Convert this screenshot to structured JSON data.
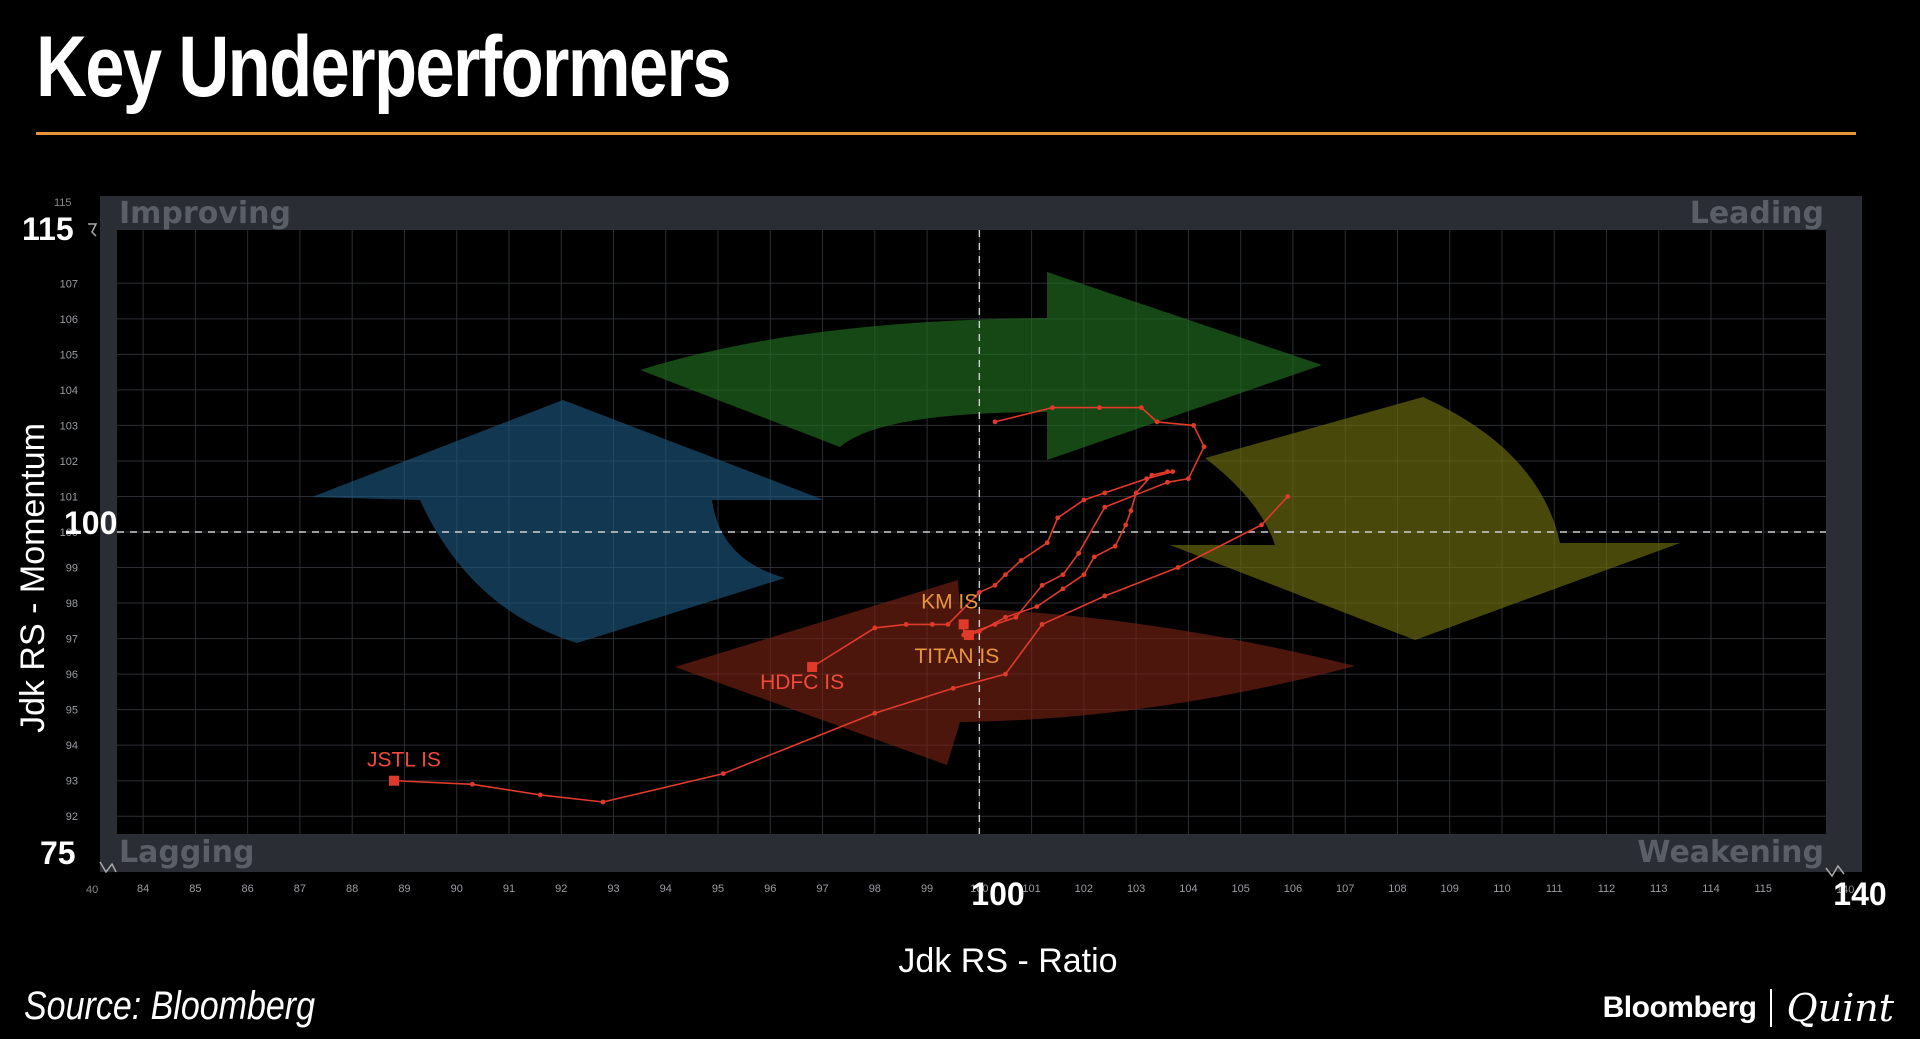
{
  "header": {
    "title": "Key Underperformers"
  },
  "footer": {
    "source": "Source: Bloomberg",
    "logo_left": "Bloomberg",
    "logo_right": "Quint"
  },
  "colors": {
    "accent_rule": "#e8963a",
    "trail": "#e03a2a",
    "improving": "#2d7fb5",
    "leading": "#2f9a2f",
    "weakening": "#9a9a1e",
    "lagging": "#b83a20"
  },
  "chart_data": {
    "type": "scatter",
    "title": "Key Underperformers",
    "xlabel": "Jdk RS - Ratio",
    "ylabel": "Jdk RS - Momentum",
    "xlim": [
      83.5,
      116.2
    ],
    "ylim": [
      91.5,
      108.5
    ],
    "grid": true,
    "center": {
      "x": 100,
      "y": 100,
      "x_label": "100",
      "y_label": "100"
    },
    "quadrants": {
      "top_left": "Improving",
      "top_right": "Leading",
      "bottom_left": "Lagging",
      "bottom_right": "Weakening"
    },
    "x_ticks": [
      "84",
      "85",
      "86",
      "87",
      "88",
      "89",
      "90",
      "91",
      "92",
      "93",
      "94",
      "95",
      "96",
      "97",
      "98",
      "99",
      "100",
      "101",
      "102",
      "103",
      "104",
      "105",
      "106",
      "107",
      "108",
      "109",
      "110",
      "111",
      "112",
      "113",
      "114",
      "115"
    ],
    "y_ticks": [
      "92",
      "93",
      "94",
      "95",
      "96",
      "97",
      "98",
      "99",
      "100",
      "101",
      "102",
      "103",
      "104",
      "105",
      "106",
      "107"
    ],
    "axis_breaks": {
      "y_top": "115",
      "y_bottom": "75",
      "x_left": "40",
      "x_right": "140",
      "x_right_large": "140"
    },
    "series": [
      {
        "name": "JSTL IS",
        "points": [
          [
            105.9,
            101.0
          ],
          [
            105.4,
            100.2
          ],
          [
            103.8,
            99.0
          ],
          [
            102.4,
            98.2
          ],
          [
            101.2,
            97.4
          ],
          [
            100.5,
            96.0
          ],
          [
            99.5,
            95.6
          ],
          [
            98.0,
            94.9
          ],
          [
            95.1,
            93.2
          ],
          [
            92.8,
            92.4
          ],
          [
            91.6,
            92.6
          ],
          [
            90.3,
            92.9
          ],
          [
            88.8,
            93.0
          ]
        ]
      },
      {
        "name": "HDFC IS",
        "points": [
          [
            103.7,
            101.7
          ],
          [
            103.2,
            101.5
          ],
          [
            102.4,
            101.1
          ],
          [
            102.0,
            100.9
          ],
          [
            101.5,
            100.4
          ],
          [
            101.3,
            99.7
          ],
          [
            100.8,
            99.2
          ],
          [
            100.5,
            98.8
          ],
          [
            100.3,
            98.5
          ],
          [
            100.0,
            98.3
          ],
          [
            99.4,
            97.4
          ],
          [
            99.1,
            97.4
          ],
          [
            98.6,
            97.4
          ],
          [
            98.0,
            97.3
          ],
          [
            96.8,
            96.2
          ]
        ]
      },
      {
        "name": "KM IS",
        "points": [
          [
            100.3,
            103.1
          ],
          [
            101.4,
            103.5
          ],
          [
            102.3,
            103.5
          ],
          [
            103.1,
            103.5
          ],
          [
            103.4,
            103.1
          ],
          [
            104.1,
            103.0
          ],
          [
            104.3,
            102.4
          ],
          [
            104.0,
            101.5
          ],
          [
            103.6,
            101.4
          ],
          [
            102.4,
            100.7
          ],
          [
            101.9,
            99.4
          ],
          [
            101.6,
            98.8
          ],
          [
            101.2,
            98.5
          ],
          [
            100.7,
            97.6
          ],
          [
            100.3,
            97.4
          ],
          [
            99.7,
            97.1
          ],
          [
            99.7,
            97.4
          ]
        ]
      },
      {
        "name": "TITAN IS",
        "points": [
          [
            103.6,
            101.7
          ],
          [
            103.3,
            101.6
          ],
          [
            103.0,
            101.1
          ],
          [
            102.9,
            100.6
          ],
          [
            102.8,
            100.2
          ],
          [
            102.6,
            99.6
          ],
          [
            102.2,
            99.3
          ],
          [
            102.0,
            98.8
          ],
          [
            101.6,
            98.4
          ],
          [
            101.1,
            97.9
          ],
          [
            100.5,
            97.6
          ],
          [
            100.0,
            97.2
          ],
          [
            99.8,
            97.1
          ]
        ]
      }
    ],
    "labels": [
      {
        "series": "JSTL IS",
        "text": "JSTL IS"
      },
      {
        "series": "HDFC IS",
        "text": "HDFC IS"
      },
      {
        "series": "KM IS",
        "text": "KM IS"
      },
      {
        "series": "TITAN IS",
        "text": "TITAN IS"
      }
    ]
  }
}
